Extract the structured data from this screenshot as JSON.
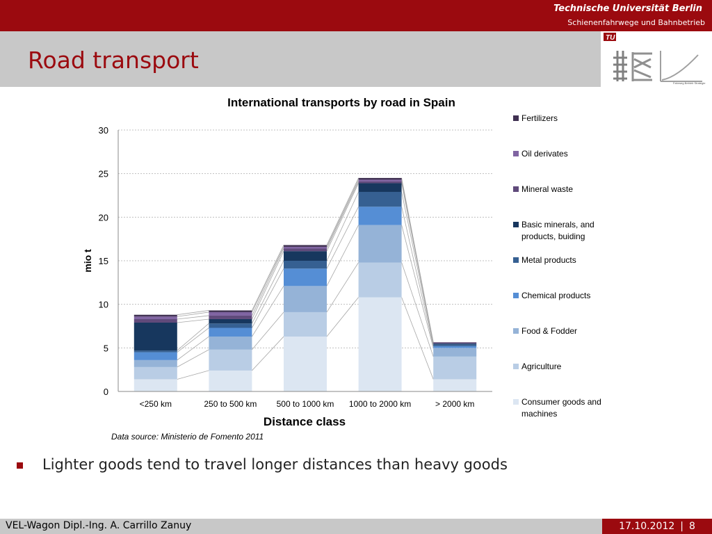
{
  "header": {
    "university": "Technische Universität Berlin",
    "department": "Schienenfahrwege und Bahnbetrieb"
  },
  "slide": {
    "title": "Road transport",
    "source_note": "Data source: Ministerio de Fomento 2011",
    "bullet": "Lighter goods tend to travel longer distances than heavy goods",
    "logo_caption": "Fahrweg Betrieb Strategie"
  },
  "footer": {
    "left": "VEL-Wagon Dipl.-Ing. A. Carrillo Zanuy",
    "date": "17.10.2012",
    "separator": "|",
    "page": "8"
  },
  "chart_data": {
    "type": "bar",
    "stacked": true,
    "title": "International transports by road in Spain",
    "xlabel": "Distance class",
    "ylabel": "mio t",
    "ylim": [
      0,
      30
    ],
    "yticks": [
      0,
      5,
      10,
      15,
      20,
      25,
      30
    ],
    "grid": true,
    "legend_position": "right",
    "categories": [
      "<250 km",
      "250 to 500 km",
      "500 to 1000 km",
      "1000 to 2000 km",
      "> 2000 km"
    ],
    "series": [
      {
        "name": "Consumer goods and machines",
        "color": "#dce6f2",
        "values": [
          1.4,
          2.4,
          6.3,
          10.8,
          1.4
        ]
      },
      {
        "name": "Agriculture",
        "color": "#b9cde5",
        "values": [
          1.4,
          2.4,
          2.8,
          4.0,
          2.6
        ]
      },
      {
        "name": "Food & Fodder",
        "color": "#95b3d7",
        "values": [
          0.8,
          1.5,
          3.0,
          4.3,
          1.0
        ]
      },
      {
        "name": "Chemical products",
        "color": "#558ed5",
        "values": [
          0.9,
          1.0,
          2.0,
          2.1,
          0.2
        ]
      },
      {
        "name": "Metal products",
        "color": "#366092",
        "values": [
          0.2,
          0.5,
          0.9,
          1.7,
          0.2
        ]
      },
      {
        "name": "Basic minerals, and products, buiding",
        "color": "#17375e",
        "values": [
          3.2,
          0.5,
          1.1,
          1.0,
          0.1
        ]
      },
      {
        "name": "Mineral waste",
        "color": "#604a7b",
        "values": [
          0.4,
          0.4,
          0.3,
          0.2,
          0.05
        ]
      },
      {
        "name": "Oil derivates",
        "color": "#8064a2",
        "values": [
          0.3,
          0.4,
          0.2,
          0.2,
          0.05
        ]
      },
      {
        "name": "Fertilizers",
        "color": "#403152",
        "values": [
          0.2,
          0.2,
          0.2,
          0.2,
          0.05
        ]
      }
    ]
  }
}
